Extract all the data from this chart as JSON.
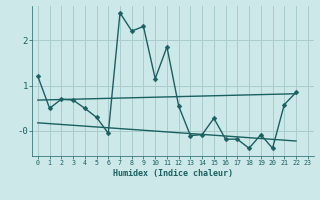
{
  "xlabel": "Humidex (Indice chaleur)",
  "bg_color": "#cce8e8",
  "grid_color": "#aacccc",
  "line_color": "#1a6060",
  "xlim": [
    -0.5,
    23.5
  ],
  "ylim": [
    -0.55,
    2.75
  ],
  "yticks": [
    0,
    1,
    2
  ],
  "ytick_labels": [
    "-0",
    "1",
    "2"
  ],
  "xticks": [
    0,
    1,
    2,
    3,
    4,
    5,
    6,
    7,
    8,
    9,
    10,
    11,
    12,
    13,
    14,
    15,
    16,
    17,
    18,
    19,
    20,
    21,
    22,
    23
  ],
  "series1_x": [
    0,
    1,
    2,
    3,
    4,
    5,
    6,
    7,
    8,
    9,
    10,
    11,
    12,
    13,
    14,
    15,
    16,
    17,
    18,
    19,
    20,
    21,
    22
  ],
  "series1_y": [
    1.2,
    0.5,
    0.7,
    0.68,
    0.5,
    0.3,
    -0.05,
    2.6,
    2.2,
    2.3,
    1.15,
    1.85,
    0.55,
    -0.1,
    -0.08,
    0.28,
    -0.18,
    -0.18,
    -0.38,
    -0.08,
    -0.38,
    0.58,
    0.85
  ],
  "series2_x": [
    0,
    22
  ],
  "series2_y": [
    0.68,
    0.82
  ],
  "series3_x": [
    0,
    22
  ],
  "series3_y": [
    0.18,
    -0.22
  ],
  "marker_size": 2.5,
  "line_width": 1.0
}
